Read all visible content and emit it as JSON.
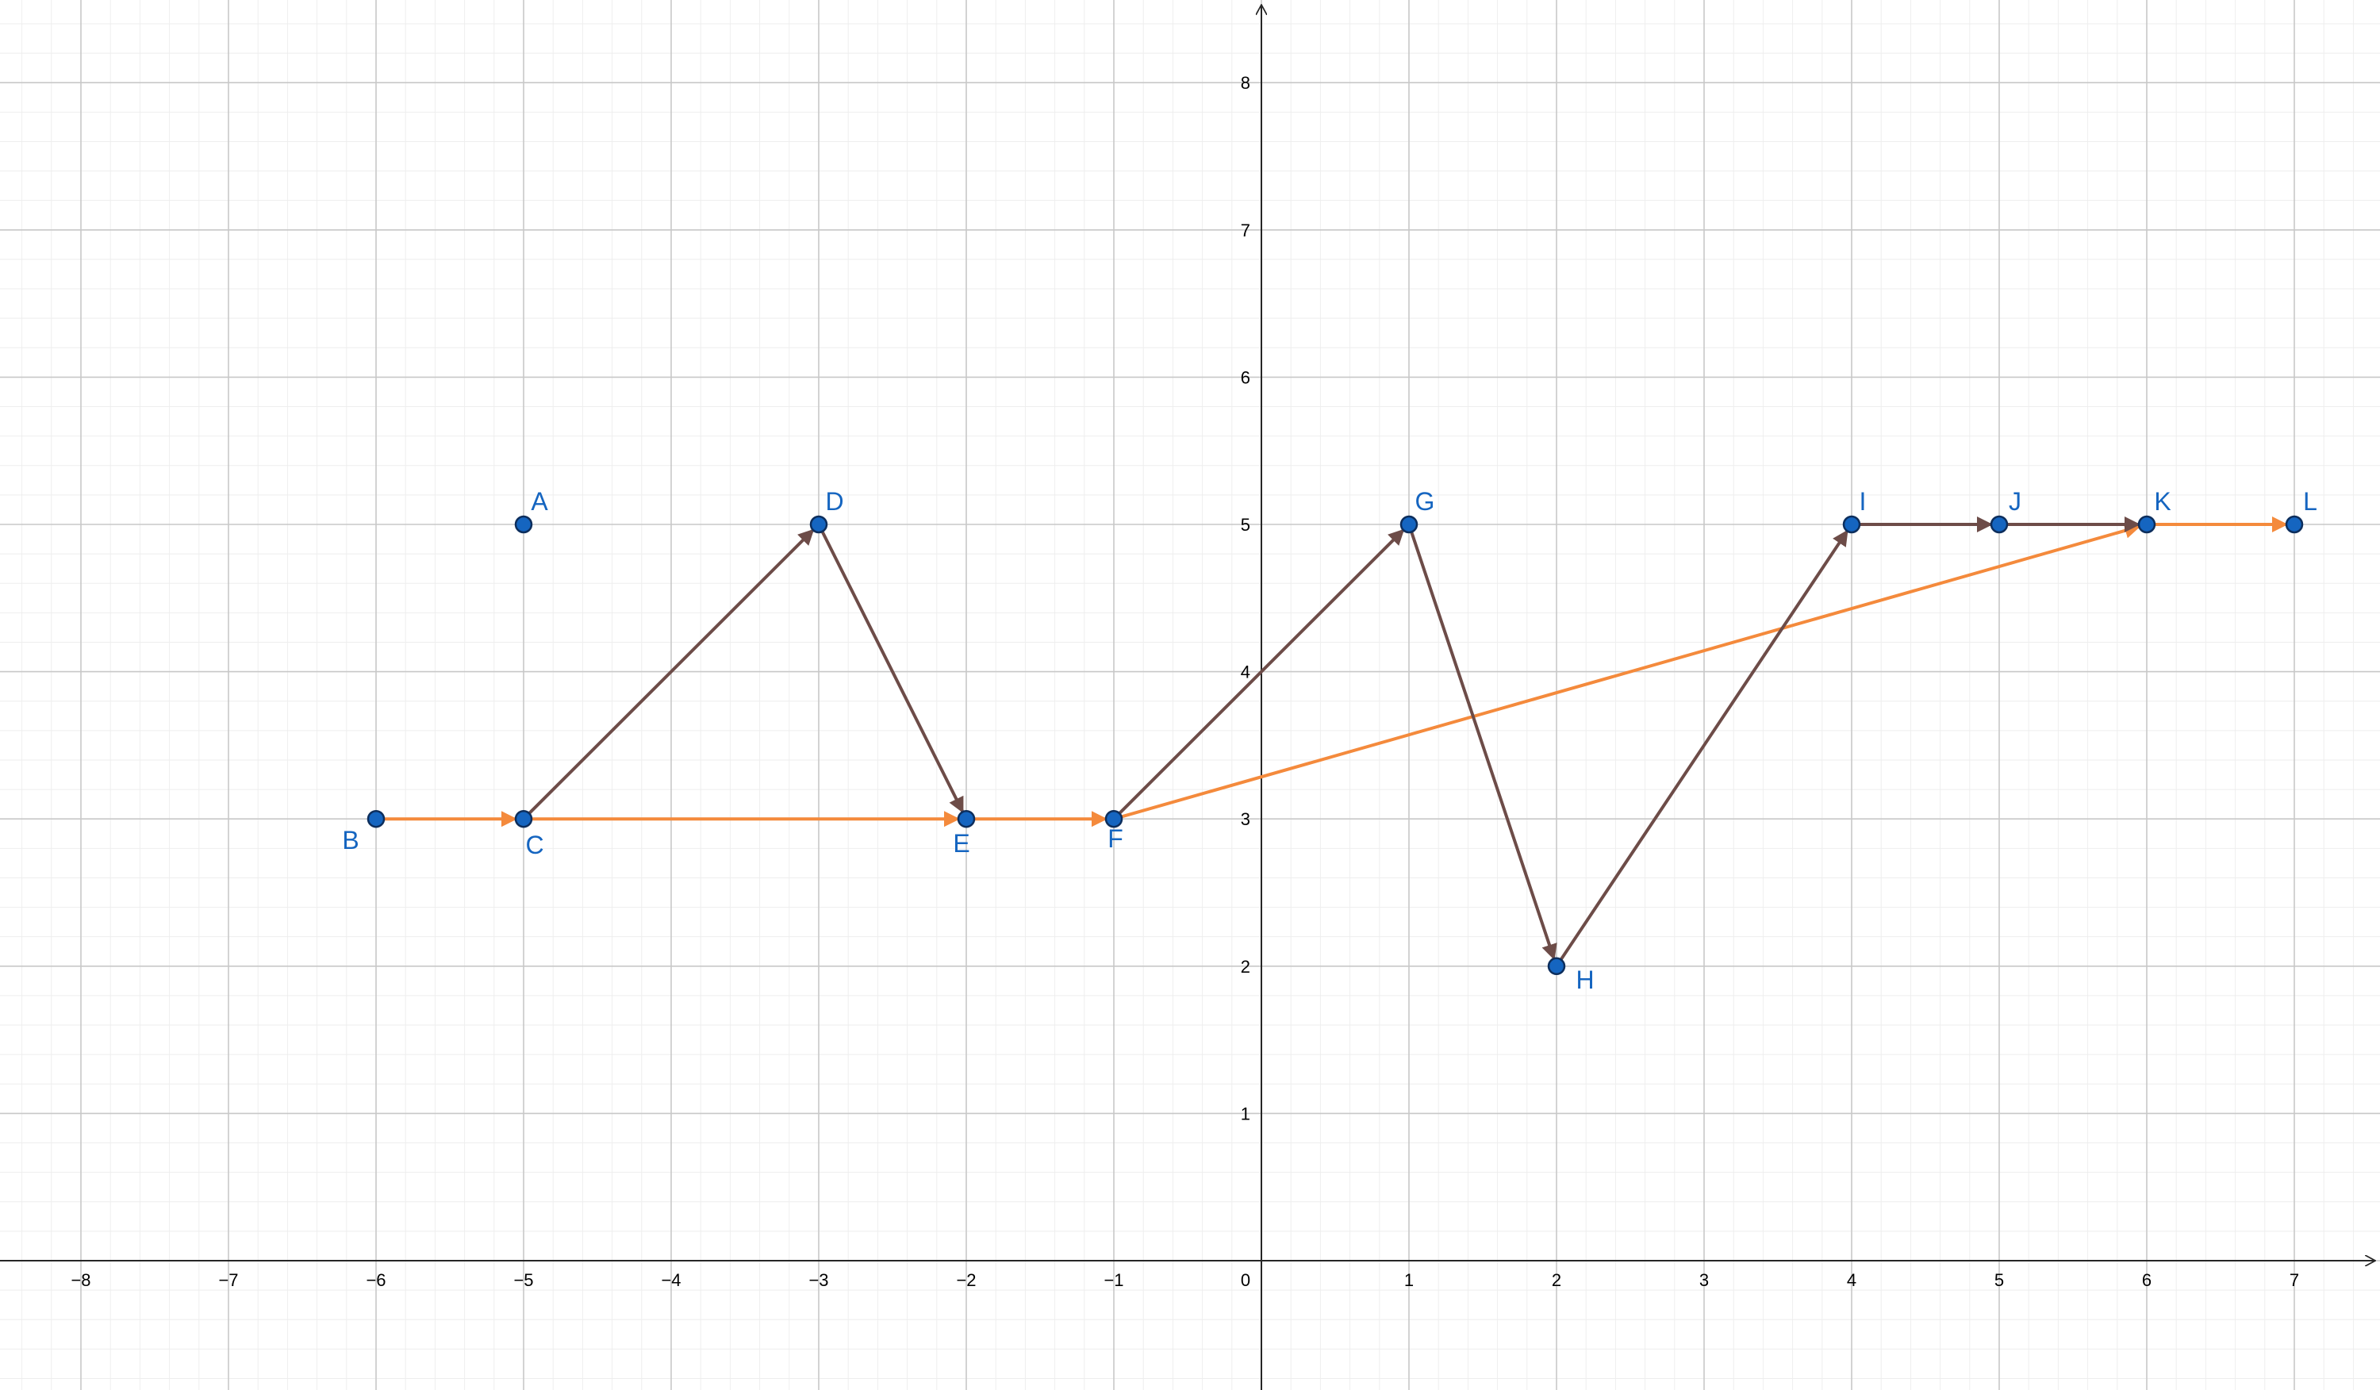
{
  "colors": {
    "background": "#ffffff",
    "minor_grid": "#eeeeee",
    "major_grid": "#c8c8c8",
    "axis": "#262626",
    "point_fill": "#1565c0",
    "point_stroke": "#0d2e5c",
    "point_label": "#1565c0",
    "brown_vector": "#6d4c48",
    "orange_vector": "#f48a3c"
  },
  "axes": {
    "x_ticks": [
      "−8",
      "−7",
      "−6",
      "−5",
      "−4",
      "−3",
      "−2",
      "−1",
      "0",
      "1",
      "2",
      "3",
      "4",
      "5",
      "6",
      "7"
    ],
    "y_ticks": [
      "1",
      "2",
      "3",
      "4",
      "5",
      "6",
      "7",
      "8"
    ]
  },
  "points": [
    {
      "label": "A",
      "x": -5,
      "y": 5
    },
    {
      "label": "B",
      "x": -6,
      "y": 3
    },
    {
      "label": "C",
      "x": -5,
      "y": 3
    },
    {
      "label": "D",
      "x": -3,
      "y": 5
    },
    {
      "label": "E",
      "x": -2,
      "y": 3
    },
    {
      "label": "F",
      "x": -1,
      "y": 3
    },
    {
      "label": "G",
      "x": 1,
      "y": 5
    },
    {
      "label": "H",
      "x": 2,
      "y": 2
    },
    {
      "label": "I",
      "x": 4,
      "y": 5
    },
    {
      "label": "J",
      "x": 5,
      "y": 5
    },
    {
      "label": "K",
      "x": 6,
      "y": 5
    },
    {
      "label": "L",
      "x": 7,
      "y": 5
    }
  ],
  "vectors": [
    {
      "from": "B",
      "to": "C",
      "color": "orange"
    },
    {
      "from": "C",
      "to": "E",
      "color": "orange"
    },
    {
      "from": "E",
      "to": "F",
      "color": "orange"
    },
    {
      "from": "F",
      "to": "K",
      "color": "orange"
    },
    {
      "from": "K",
      "to": "L",
      "color": "orange"
    },
    {
      "from": "C",
      "to": "D",
      "color": "brown"
    },
    {
      "from": "D",
      "to": "E",
      "color": "brown"
    },
    {
      "from": "F",
      "to": "G",
      "color": "brown"
    },
    {
      "from": "G",
      "to": "H",
      "color": "brown"
    },
    {
      "from": "H",
      "to": "I",
      "color": "brown"
    },
    {
      "from": "I",
      "to": "J",
      "color": "brown"
    },
    {
      "from": "J",
      "to": "K",
      "color": "brown"
    }
  ]
}
